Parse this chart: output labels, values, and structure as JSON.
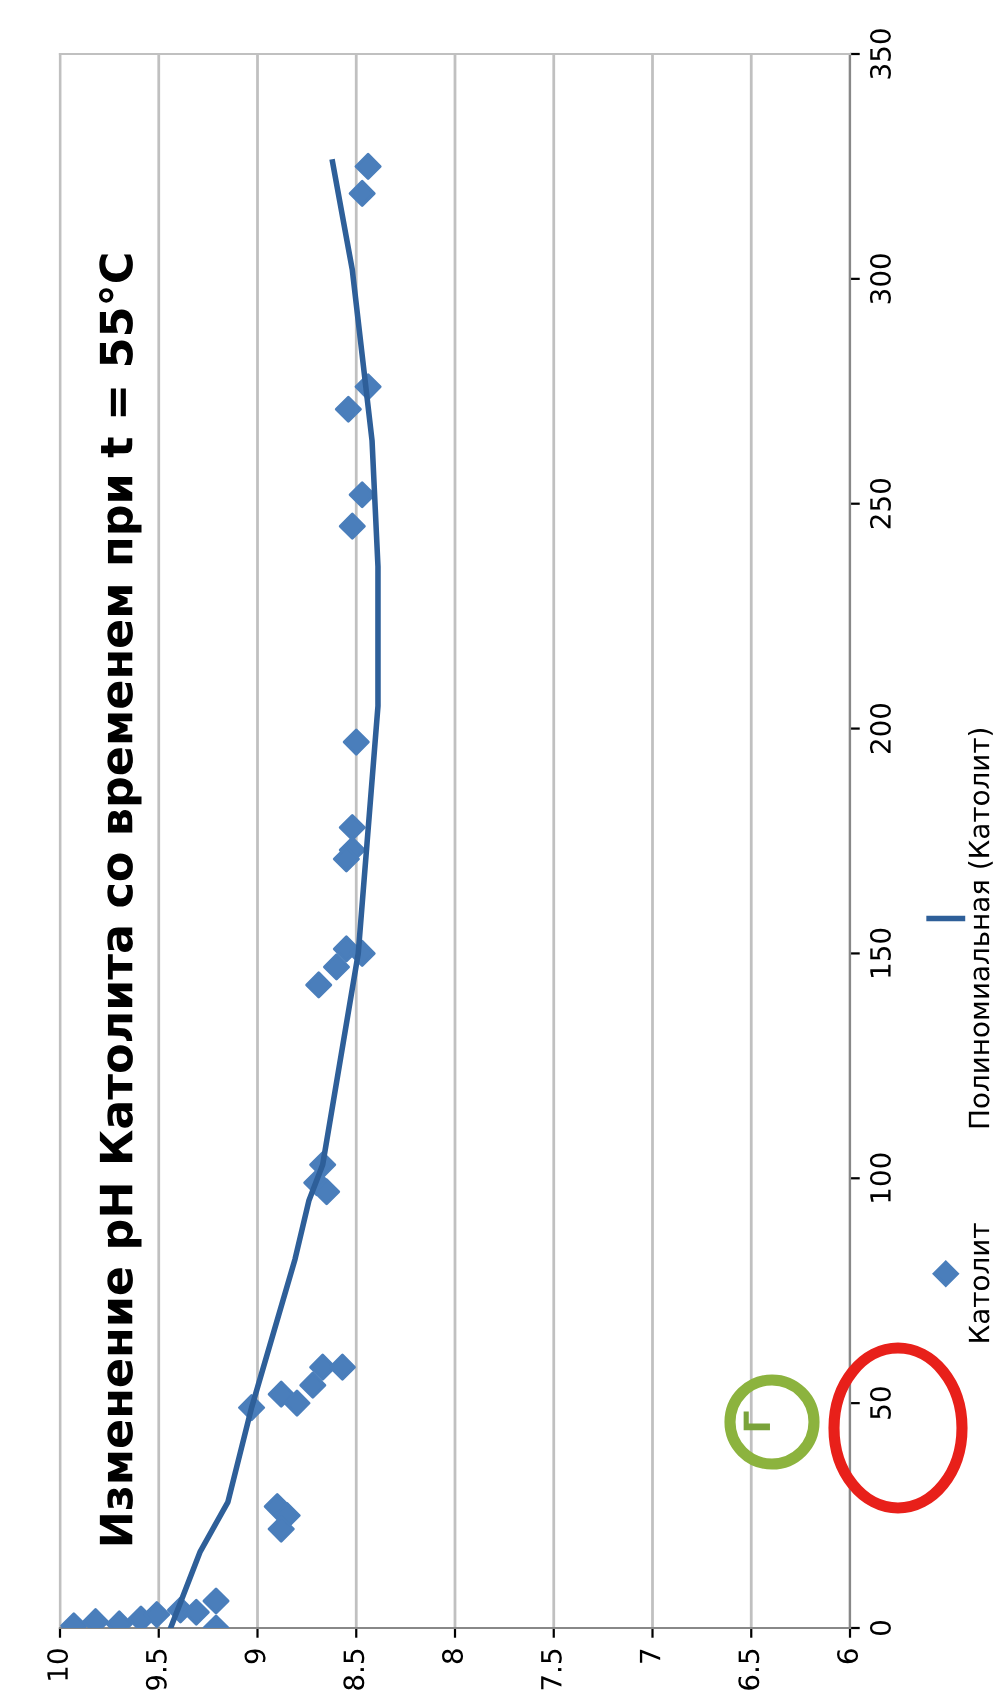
{
  "chart_data": {
    "type": "scatter",
    "title": "Изменение pH Католита со временем при t = 55°C",
    "xlim": [
      10,
      6
    ],
    "xticks": [
      10,
      {
        "value": 9.5,
        "label": "9.5"
      },
      9,
      {
        "value": 8.5,
        "label": "8.5"
      },
      8,
      {
        "value": 7.5,
        "label": "7.5"
      },
      7,
      {
        "value": 6.5,
        "label": "6.5"
      },
      6
    ],
    "ylim": [
      0,
      350
    ],
    "yticks": [
      0,
      50,
      100,
      150,
      200,
      250,
      300,
      350
    ],
    "grid": "x",
    "legend": "right",
    "annotations": [
      "Г"
    ],
    "series": [
      {
        "name": "Католит",
        "marker": "diamond",
        "color": "#4a7ebb",
        "x": [
          9.93,
          9.82,
          9.7,
          9.59,
          9.51,
          9.39,
          9.31,
          9.21,
          9.21,
          8.9,
          8.85,
          8.88,
          9.03,
          8.88,
          8.8,
          8.72,
          8.67,
          8.57,
          8.67,
          8.7,
          8.65,
          8.69,
          8.6,
          8.55,
          8.47,
          8.52,
          8.55,
          8.52,
          8.5,
          8.52,
          8.47,
          8.54,
          8.44,
          8.47,
          8.44
        ],
        "values": [
          0.5,
          1.4,
          0.9,
          2,
          3,
          4,
          3.5,
          6,
          0,
          27,
          25,
          22,
          49,
          52,
          50,
          54,
          58,
          58,
          103,
          99,
          97,
          143,
          147,
          151,
          150,
          173,
          171,
          178,
          197,
          245,
          252,
          271,
          276,
          319,
          325
        ]
      },
      {
        "name": "Полиномиальная (Католит)",
        "type": "line",
        "marker": "none",
        "line_style": "solid",
        "color": "#2e5f99",
        "x": [
          9.44,
          9.29,
          9.15,
          9.03,
          8.81,
          8.74,
          8.67,
          8.49,
          8.39,
          8.39,
          8.42,
          8.52,
          8.62
        ],
        "values": [
          0,
          17,
          28,
          49,
          82,
          95,
          103,
          150,
          205,
          236,
          264,
          302,
          326
        ]
      }
    ]
  }
}
